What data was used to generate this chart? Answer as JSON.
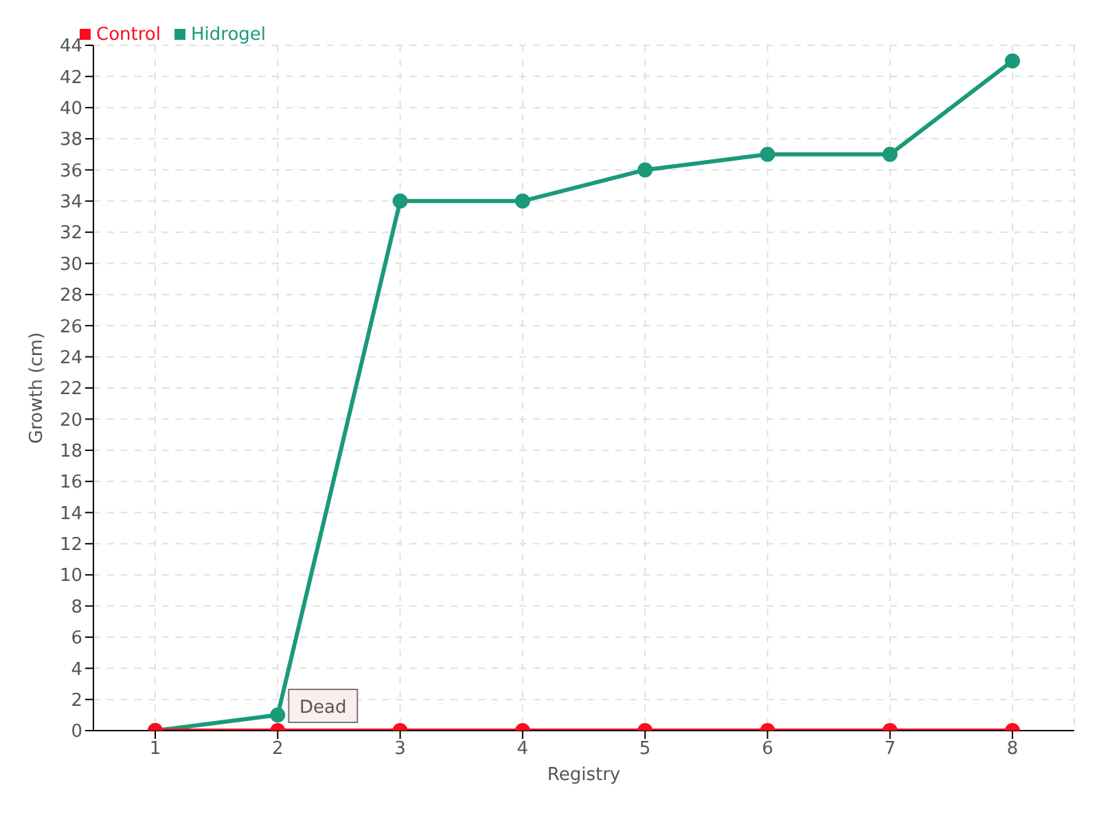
{
  "chart_data": {
    "type": "line",
    "xlabel": "Registry",
    "ylabel": "Growth (cm)",
    "categories": [
      "1",
      "2",
      "3",
      "4",
      "5",
      "6",
      "7",
      "8"
    ],
    "series": [
      {
        "name": "Hidrogel",
        "color": "#1a9a7a",
        "values": [
          0,
          1,
          34,
          34,
          36,
          37,
          37,
          43
        ]
      },
      {
        "name": "Control",
        "color": "#ff0a1e",
        "values": [
          0,
          0,
          0,
          0,
          0,
          0,
          0,
          0
        ]
      }
    ],
    "ylim": [
      0,
      44
    ],
    "yticks": [
      0,
      2,
      4,
      6,
      8,
      10,
      12,
      14,
      16,
      18,
      20,
      22,
      24,
      26,
      28,
      30,
      32,
      34,
      36,
      38,
      40,
      42,
      44
    ],
    "grid": true,
    "legend": "top left",
    "marker": "circle",
    "line_style": "solid",
    "annotations": [
      {
        "text": "Dead",
        "x": "2",
        "y": 0
      }
    ]
  }
}
